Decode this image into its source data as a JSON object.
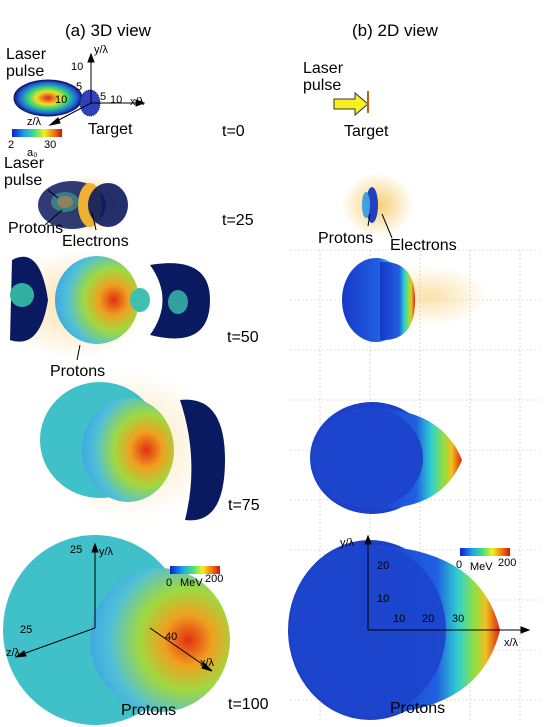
{
  "headers": {
    "left": "(a) 3D view",
    "right": "(b) 2D view"
  },
  "times": [
    "t=0",
    "t=25",
    "t=50",
    "t=75",
    "t=100"
  ],
  "labels": {
    "laser_pulse": "Laser pulse",
    "target": "Target",
    "protons": "Protons",
    "electrons": "Electrons"
  },
  "axes3d_top": {
    "y": "y/λ",
    "z": "z/λ",
    "x": "x/λ",
    "ticks": [
      "10",
      "5",
      "10",
      "5",
      "10"
    ]
  },
  "colorbar_a0": {
    "min": "2",
    "max": "30",
    "label": "a₀"
  },
  "colorbar_mev": {
    "min": "0",
    "unit": "MeV",
    "max": "200"
  },
  "axes3d_bottom": {
    "y": "y/λ",
    "z": "z/λ",
    "x": "x/λ",
    "ticks": [
      "25",
      "25",
      "40"
    ]
  },
  "axes2d_bottom": {
    "y": "y/λ",
    "x": "x/λ",
    "yticks": [
      "20",
      "10"
    ],
    "xticks": [
      "10",
      "20",
      "30"
    ]
  },
  "colors": {
    "blue": "#1a3cc8",
    "cyan": "#40c8e0",
    "green": "#7ad040",
    "yellow": "#f0d020",
    "orange": "#f08020",
    "red": "#e02010",
    "electron": "#f2c050",
    "navy": "#0a1050"
  }
}
